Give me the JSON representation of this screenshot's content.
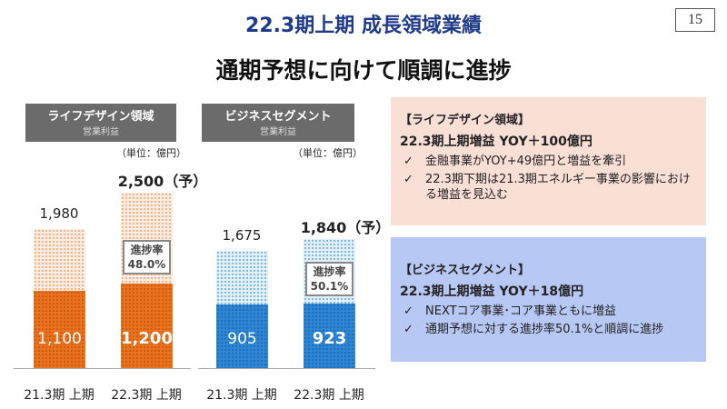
{
  "header": {
    "title": "22.3期上期 成長領域業績",
    "subtitle": "通期予想に向けて順調に進捗",
    "page_number": "15"
  },
  "chart_data": [
    {
      "type": "bar",
      "title": "ライフデザイン領域",
      "subtitle": "営業利益",
      "unit": "（単位：億円）",
      "categories": [
        "21.3期 上期",
        "22.3期 上期"
      ],
      "full_year": [
        1980,
        2500
      ],
      "full_year_labels": [
        "1,980",
        "2,500（予）"
      ],
      "first_half": [
        1100,
        1200
      ],
      "first_half_labels": [
        "1,100",
        "1,200"
      ],
      "progress": {
        "label": "進捗率",
        "value": "48.0%"
      },
      "color": "#e8741e"
    },
    {
      "type": "bar",
      "title": "ビジネスセグメント",
      "subtitle": "営業利益",
      "unit": "（単位：億円）",
      "categories": [
        "21.3期 上期",
        "22.3期 上期"
      ],
      "full_year": [
        1675,
        1840
      ],
      "full_year_labels": [
        "1,675",
        "1,840（予）"
      ],
      "first_half": [
        905,
        923
      ],
      "first_half_labels": [
        "905",
        "923"
      ],
      "progress": {
        "label": "進捗率",
        "value": "50.1%"
      },
      "color": "#2f86d2"
    }
  ],
  "boxes": [
    {
      "heading": "【ライフデザイン領域】",
      "yoy": "22.3期上期増益 YOY＋100億円",
      "bg": "#fadfd6",
      "items": [
        "金融事業がYOY+49億円と増益を牽引",
        "22.3期下期は21.3期エネルギー事業の影響における増益を見込む"
      ]
    },
    {
      "heading": "【ビジネスセグメント】",
      "yoy": "22.3期上期増益 YOY＋18億円",
      "bg": "#b8c8f5",
      "items": [
        "NEXTコア事業･コア事業ともに増益",
        "通期予想に対する進捗率50.1%と順調に進捗"
      ]
    }
  ],
  "check": "✓"
}
